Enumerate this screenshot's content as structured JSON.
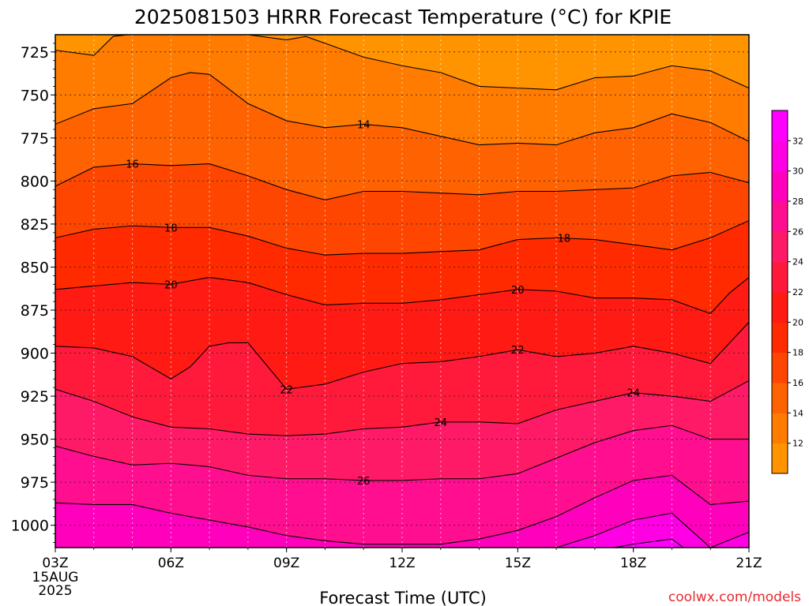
{
  "chart_data": {
    "type": "heatmap",
    "title": "2025081503 HRRR Forecast Temperature (°C) for KPIE",
    "xlabel": "Forecast Time (UTC)",
    "ylabel": "",
    "x_ticks": [
      "03Z",
      "06Z",
      "09Z",
      "12Z",
      "15Z",
      "18Z",
      "21Z"
    ],
    "x_first_tick_extra": [
      "15AUG",
      "2025"
    ],
    "x_range_hours": [
      3,
      21
    ],
    "y_ticks": [
      725,
      750,
      775,
      800,
      825,
      850,
      875,
      900,
      925,
      950,
      975,
      1000
    ],
    "y_range_hpa": [
      715,
      1013
    ],
    "grid": true,
    "colorbar": {
      "labels": [
        12,
        14,
        16,
        18,
        20,
        22,
        24,
        26,
        28,
        30,
        32
      ],
      "colors": [
        "#FF9400",
        "#FF7C00",
        "#FF6200",
        "#FF4600",
        "#FF2A00",
        "#FF1A14",
        "#FF1A3C",
        "#FF1A68",
        "#FF0E90",
        "#FF00BC",
        "#FF00E4",
        "#FF00FF"
      ]
    },
    "contours": [
      {
        "level": 12,
        "x": [
          3,
          4,
          4.5,
          6,
          7,
          8,
          9,
          9.5,
          10,
          11,
          12,
          13,
          14,
          15,
          16,
          17,
          18,
          19,
          20,
          21
        ],
        "p": [
          724,
          727,
          716,
          712,
          714,
          715,
          718,
          716,
          720,
          728,
          733,
          737,
          745,
          746,
          747,
          740,
          739,
          733,
          736,
          746
        ]
      },
      {
        "level": 14,
        "x": [
          3,
          4,
          5,
          6,
          6.5,
          7,
          8,
          9,
          10,
          11,
          12,
          13,
          14,
          15,
          16,
          17,
          18,
          19,
          20,
          21
        ],
        "p": [
          767,
          758,
          755,
          740,
          737,
          738,
          755,
          765,
          769,
          767,
          769,
          774,
          779,
          778,
          779,
          772,
          769,
          761,
          766,
          777
        ]
      },
      {
        "level": 16,
        "x": [
          3,
          4,
          5,
          6,
          7,
          8,
          9,
          10,
          11,
          12,
          13,
          14,
          15,
          16,
          17,
          18,
          19,
          20,
          21
        ],
        "p": [
          803,
          792,
          790,
          791,
          790,
          797,
          805,
          811,
          806,
          806,
          807,
          808,
          806,
          806,
          805,
          804,
          797,
          795,
          801
        ]
      },
      {
        "level": 18,
        "x": [
          3,
          4,
          5,
          6,
          7,
          8,
          9,
          10,
          11,
          12,
          13,
          14,
          15,
          16,
          17,
          18,
          19,
          20,
          21
        ],
        "p": [
          833,
          828,
          826,
          827,
          827,
          832,
          839,
          843,
          842,
          842,
          841,
          840,
          834,
          833,
          834,
          837,
          840,
          833,
          823
        ]
      },
      {
        "level": 20,
        "x": [
          3,
          4,
          5,
          6,
          7,
          8,
          9,
          10,
          11,
          12,
          13,
          14,
          15,
          16,
          17,
          18,
          19,
          20,
          20.5,
          21
        ],
        "p": [
          863,
          861,
          859,
          860,
          856,
          859,
          866,
          872,
          871,
          871,
          869,
          866,
          863,
          864,
          868,
          868,
          869,
          877,
          865,
          856
        ]
      },
      {
        "level": 22,
        "x": [
          3,
          4,
          5,
          6,
          6.5,
          7,
          7.5,
          8,
          9,
          10,
          11,
          12,
          13,
          14,
          15,
          16,
          17,
          18,
          19,
          20,
          21
        ],
        "p": [
          896,
          897,
          902,
          915,
          908,
          896,
          894,
          894,
          921,
          918,
          911,
          906,
          905,
          902,
          898,
          902,
          900,
          896,
          900,
          906,
          882
        ]
      },
      {
        "level": 24,
        "x": [
          3,
          4,
          5,
          6,
          7,
          8,
          9,
          10,
          11,
          12,
          13,
          14,
          15,
          16,
          17,
          18,
          19,
          20,
          21
        ],
        "p": [
          921,
          928,
          937,
          943,
          944,
          947,
          948,
          947,
          944,
          943,
          940,
          940,
          941,
          933,
          928,
          923,
          925,
          928,
          916
        ]
      },
      {
        "level": 26,
        "x": [
          3,
          4,
          5,
          6,
          7,
          8,
          9,
          10,
          11,
          12,
          13,
          14,
          15,
          16,
          17,
          18,
          19,
          20,
          21
        ],
        "p": [
          954,
          960,
          965,
          964,
          966,
          971,
          973,
          973,
          974,
          974,
          973,
          973,
          970,
          961,
          952,
          945,
          942,
          950,
          950
        ]
      },
      {
        "level": 28,
        "x": [
          3,
          4,
          5,
          6,
          7,
          8,
          9,
          10,
          11,
          12,
          13,
          14,
          15,
          16,
          17,
          18,
          19,
          20,
          21
        ],
        "p": [
          987,
          988,
          988,
          993,
          997,
          1001,
          1006,
          1009,
          1011,
          1011,
          1011,
          1008,
          1003,
          995,
          984,
          974,
          971,
          988,
          986
        ]
      },
      {
        "level": 30,
        "x": [
          16,
          17,
          18,
          19,
          20,
          21
        ],
        "p": [
          1013,
          1006,
          997,
          993,
          1013,
          1004
        ]
      },
      {
        "level": 32,
        "x": [
          17.5,
          18,
          19,
          19.3
        ],
        "p": [
          1013,
          1011,
          1008,
          1013
        ]
      }
    ],
    "contour_labels": [
      {
        "text": "14",
        "x": 11,
        "p": 767
      },
      {
        "text": "16",
        "x": 5,
        "p": 790
      },
      {
        "text": "18",
        "x": 6,
        "p": 827
      },
      {
        "text": "18",
        "x": 16.2,
        "p": 833
      },
      {
        "text": "20",
        "x": 6,
        "p": 860
      },
      {
        "text": "20",
        "x": 15,
        "p": 863
      },
      {
        "text": "22",
        "x": 9,
        "p": 921
      },
      {
        "text": "22",
        "x": 15,
        "p": 898
      },
      {
        "text": "24",
        "x": 13,
        "p": 940
      },
      {
        "text": "24",
        "x": 18,
        "p": 923
      },
      {
        "text": "26",
        "x": 11,
        "p": 974
      }
    ],
    "surface_color": "#A0522D",
    "surface_p": [
      1014,
      1014,
      1013,
      1013,
      1014,
      1014,
      1014
    ]
  },
  "credit": "coolwx.com/models"
}
